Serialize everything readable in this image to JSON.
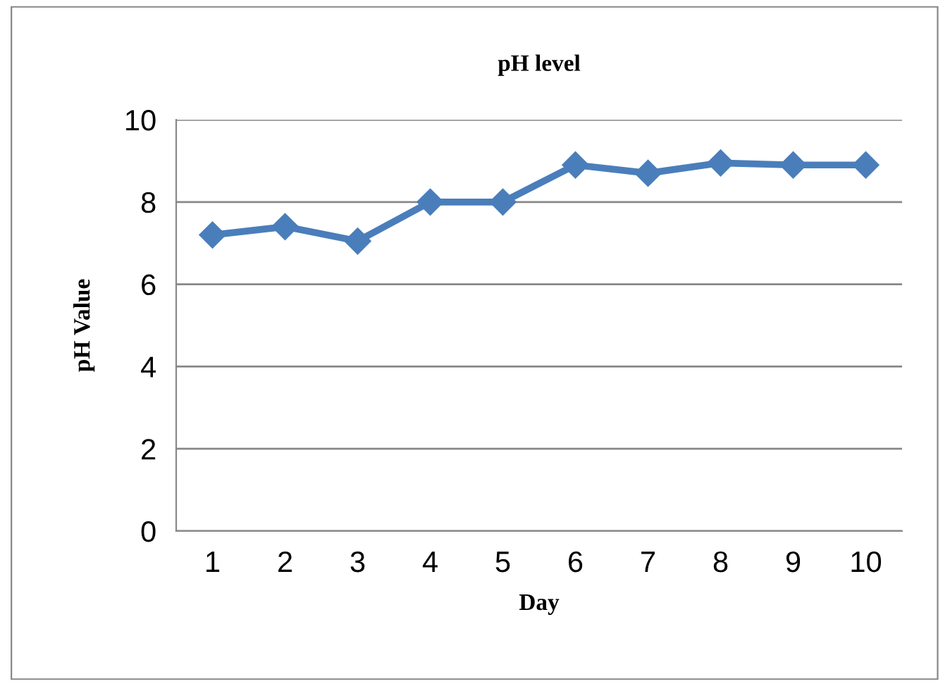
{
  "chart_data": {
    "type": "line",
    "title": "pH level",
    "xlabel": "Day",
    "ylabel": "pH Value",
    "categories": [
      "1",
      "2",
      "3",
      "4",
      "5",
      "6",
      "7",
      "8",
      "9",
      "10"
    ],
    "series": [
      {
        "color": "#4a7ebb",
        "values": [
          7.2,
          7.4,
          7.05,
          8.0,
          8.0,
          8.9,
          8.7,
          8.95,
          8.9,
          8.9
        ]
      }
    ],
    "ylim": [
      0,
      10
    ],
    "yticks": [
      0,
      2,
      4,
      6,
      8,
      10
    ],
    "grid": "y",
    "marker": "diamond",
    "line_style": "solid"
  }
}
